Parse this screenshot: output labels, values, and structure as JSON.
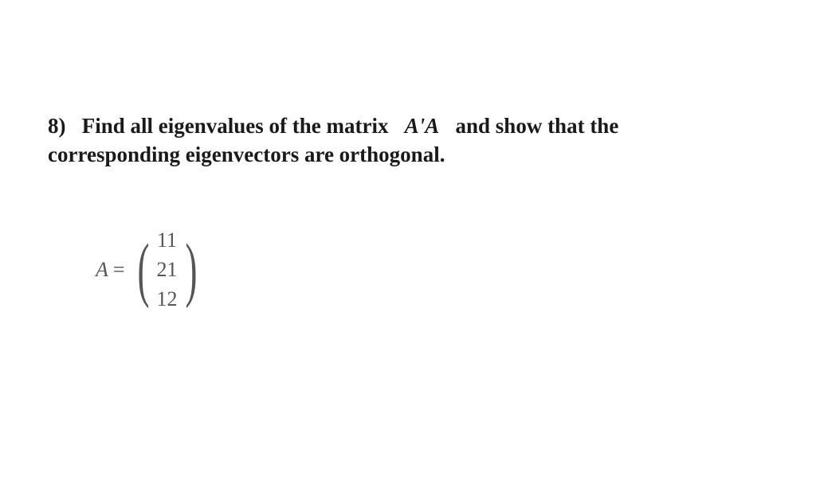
{
  "question": {
    "number": "8)",
    "text_part1": "Find all eigenvalues of the matrix",
    "math_expr": "A'A",
    "text_part2": "and show that the",
    "text_line2": "corresponding eigenvectors are orthogonal."
  },
  "matrix": {
    "label": "A",
    "equals": "=",
    "rows": [
      "11",
      "21",
      "12"
    ]
  },
  "styling": {
    "background_color": "#ffffff",
    "text_color": "#1a1a1a",
    "matrix_color": "#555555",
    "question_fontsize": 27,
    "matrix_fontsize": 26,
    "font_family": "Times New Roman"
  }
}
